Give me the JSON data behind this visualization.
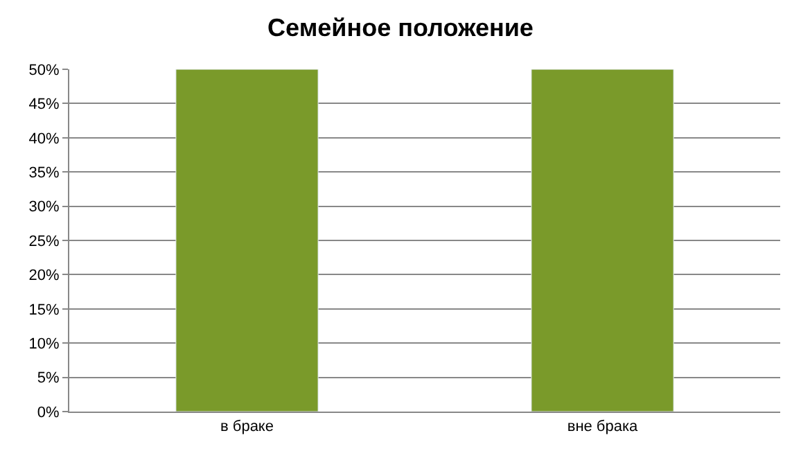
{
  "chart_data": {
    "type": "bar",
    "title": "Семейное положение",
    "categories": [
      "в браке",
      "вне брака"
    ],
    "values": [
      50,
      50
    ],
    "color": "#7a9a2a",
    "ylim": [
      0,
      50
    ],
    "yticks": [
      {
        "value": 0,
        "label": "0%"
      },
      {
        "value": 5,
        "label": "5%"
      },
      {
        "value": 10,
        "label": "10%"
      },
      {
        "value": 15,
        "label": "15%"
      },
      {
        "value": 20,
        "label": "20%"
      },
      {
        "value": 25,
        "label": "25%"
      },
      {
        "value": 30,
        "label": "30%"
      },
      {
        "value": 35,
        "label": "35%"
      },
      {
        "value": 40,
        "label": "40%"
      },
      {
        "value": 45,
        "label": "45%"
      },
      {
        "value": 50,
        "label": "50%"
      }
    ],
    "grid": "y"
  }
}
